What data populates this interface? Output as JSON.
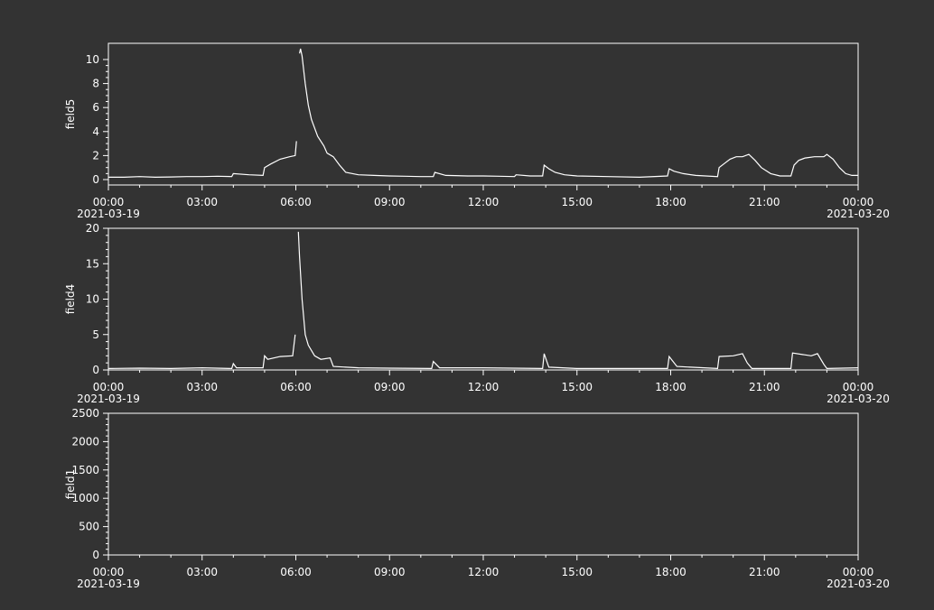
{
  "chart_data": [
    {
      "type": "line",
      "y_label": "field5",
      "color": "#ffffff",
      "xlim": [
        0,
        24
      ],
      "ylim": [
        -0.45,
        11.35
      ],
      "yticks": [
        0,
        2,
        4,
        6,
        8,
        10
      ],
      "yminor": 4,
      "xminor": 3,
      "xticks": [
        {
          "value": 0,
          "label": "00:00"
        },
        {
          "value": 3,
          "label": "03:00"
        },
        {
          "value": 6,
          "label": "06:00"
        },
        {
          "value": 9,
          "label": "09:00"
        },
        {
          "value": 12,
          "label": "12:00"
        },
        {
          "value": 15,
          "label": "15:00"
        },
        {
          "value": 18,
          "label": "18:00"
        },
        {
          "value": 21,
          "label": "21:00"
        },
        {
          "value": 24,
          "label": "00:00"
        }
      ],
      "xlim_labels": [
        "2021-03-19",
        "2021-03-20"
      ],
      "series": [
        {
          "name": "field5",
          "color": "#ffffff",
          "x": [
            0,
            0.5,
            1,
            1.5,
            2,
            2.5,
            3,
            3.5,
            3.95,
            4.0,
            4.5,
            4.95,
            5.0,
            5.2,
            5.5,
            5.8,
            5.98,
            6.02,
            6.06,
            6.12,
            6.15,
            6.2,
            6.3,
            6.4,
            6.5,
            6.7,
            6.9,
            7.0,
            7.2,
            7.4,
            7.6,
            8,
            8.5,
            9,
            9.5,
            10,
            10.4,
            10.45,
            10.8,
            11.5,
            12,
            12.5,
            13,
            13.05,
            13.5,
            13.9,
            13.95,
            14.1,
            14.3,
            14.6,
            15,
            16,
            17,
            17.9,
            17.95,
            18.1,
            18.4,
            18.8,
            19.5,
            19.55,
            19.7,
            19.9,
            20.1,
            20.3,
            20.5,
            20.7,
            20.9,
            21.2,
            21.5,
            21.85,
            21.95,
            22.1,
            22.3,
            22.6,
            22.9,
            23.0,
            23.2,
            23.4,
            23.6,
            23.8,
            24
          ],
          "values": [
            0.2,
            0.2,
            0.25,
            0.2,
            0.22,
            0.25,
            0.25,
            0.28,
            0.25,
            0.5,
            0.4,
            0.35,
            1.0,
            1.3,
            1.7,
            1.9,
            2.0,
            3.2,
            null,
            10.5,
            10.9,
            10.3,
            8.0,
            6.2,
            5.0,
            3.6,
            2.8,
            2.2,
            1.9,
            1.2,
            0.6,
            0.4,
            0.35,
            0.3,
            0.28,
            0.25,
            0.25,
            0.6,
            0.35,
            0.3,
            0.3,
            0.28,
            0.25,
            0.4,
            0.3,
            0.3,
            1.2,
            0.9,
            0.6,
            0.4,
            0.3,
            0.25,
            0.2,
            0.3,
            0.9,
            0.7,
            0.5,
            0.35,
            0.25,
            1.0,
            1.3,
            1.7,
            1.9,
            1.9,
            2.1,
            1.6,
            1.0,
            0.5,
            0.3,
            0.3,
            1.2,
            1.6,
            1.8,
            1.9,
            1.9,
            2.1,
            1.7,
            1.0,
            0.5,
            0.35,
            0.35
          ]
        }
      ]
    },
    {
      "type": "line",
      "y_label": "field4",
      "color": "#ffffff",
      "xlim": [
        0,
        24
      ],
      "ylim": [
        0,
        20
      ],
      "yticks": [
        0,
        5,
        10,
        15,
        20
      ],
      "yminor": 5,
      "xminor": 3,
      "xticks": [
        {
          "value": 0,
          "label": "00:00"
        },
        {
          "value": 3,
          "label": "03:00"
        },
        {
          "value": 6,
          "label": "06:00"
        },
        {
          "value": 9,
          "label": "09:00"
        },
        {
          "value": 12,
          "label": "12:00"
        },
        {
          "value": 15,
          "label": "15:00"
        },
        {
          "value": 18,
          "label": "18:00"
        },
        {
          "value": 21,
          "label": "21:00"
        },
        {
          "value": 24,
          "label": "00:00"
        }
      ],
      "xlim_labels": [
        "2021-03-19",
        "2021-03-20"
      ],
      "series": [
        {
          "name": "field4",
          "color": "#ffffff",
          "x": [
            0,
            1,
            2,
            3,
            3.95,
            4.0,
            4.1,
            4.95,
            5.0,
            5.1,
            5.5,
            5.9,
            5.98,
            6.03,
            6.08,
            6.12,
            6.2,
            6.3,
            6.4,
            6.6,
            6.8,
            7.1,
            7.2,
            8,
            9,
            10.35,
            10.4,
            10.6,
            12,
            13.9,
            13.95,
            14.1,
            15,
            17.9,
            17.95,
            18.2,
            19.5,
            19.55,
            20.0,
            20.3,
            20.45,
            20.6,
            21.85,
            21.9,
            22.5,
            22.7,
            22.9,
            23.0,
            24
          ],
          "values": [
            0.2,
            0.25,
            0.2,
            0.3,
            0.2,
            0.9,
            0.3,
            0.3,
            2.0,
            1.5,
            1.9,
            2.0,
            5.0,
            null,
            19.5,
            16.0,
            10.0,
            5.0,
            3.5,
            2.0,
            1.5,
            1.7,
            0.5,
            0.3,
            0.25,
            0.2,
            1.2,
            0.3,
            0.3,
            0.2,
            2.3,
            0.4,
            0.2,
            0.2,
            1.9,
            0.5,
            0.2,
            1.9,
            2.0,
            2.3,
            1.0,
            0.2,
            0.2,
            2.4,
            2.0,
            2.3,
            0.8,
            0.2,
            0.3
          ]
        }
      ]
    },
    {
      "type": "line",
      "y_label": "field1",
      "color": "#ffffff",
      "xlim": [
        0,
        24
      ],
      "ylim": [
        0,
        2500
      ],
      "yticks": [
        0,
        500,
        1000,
        1500,
        2000,
        2500
      ],
      "yminor": 5,
      "xminor": 3,
      "xticks": [
        {
          "value": 0,
          "label": "00:00"
        },
        {
          "value": 3,
          "label": "03:00"
        },
        {
          "value": 6,
          "label": "06:00"
        },
        {
          "value": 9,
          "label": "09:00"
        },
        {
          "value": 12,
          "label": "12:00"
        },
        {
          "value": 15,
          "label": "15:00"
        },
        {
          "value": 18,
          "label": "18:00"
        },
        {
          "value": 21,
          "label": "21:00"
        },
        {
          "value": 24,
          "label": "00:00"
        }
      ],
      "xlim_labels": [
        "2021-03-19",
        "2021-03-20"
      ]
    }
  ]
}
